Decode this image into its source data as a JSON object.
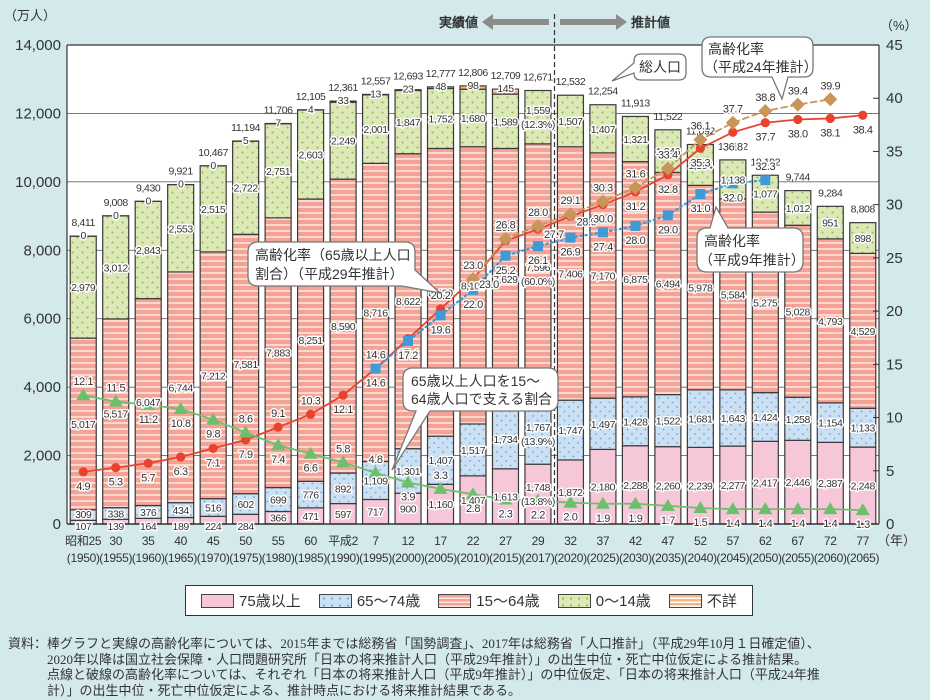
{
  "chart_data": {
    "type": "bar",
    "subtype": "stacked-bar-with-lines",
    "header": {
      "actual_label": "実績値",
      "projection_label": "推計値"
    },
    "left_axis": {
      "unit_label": "（万人）",
      "min": 0,
      "max": 14000,
      "ticks": [
        0,
        2000,
        4000,
        6000,
        8000,
        10000,
        12000,
        14000
      ]
    },
    "right_axis": {
      "unit_label": "（%）",
      "min": 0,
      "max": 45,
      "ticks": [
        0,
        5,
        10,
        15,
        20,
        25,
        30,
        35,
        40,
        45
      ]
    },
    "x_unit_label": "（年）",
    "grid": true,
    "legend_position": "bottom",
    "categories": [
      {
        "era": "昭和25",
        "year": "(1950)"
      },
      {
        "era": "30",
        "year": "(1955)"
      },
      {
        "era": "35",
        "year": "(1960)"
      },
      {
        "era": "40",
        "year": "(1965)"
      },
      {
        "era": "45",
        "year": "(1970)"
      },
      {
        "era": "50",
        "year": "(1975)"
      },
      {
        "era": "55",
        "year": "(1980)"
      },
      {
        "era": "60",
        "year": "(1985)"
      },
      {
        "era": "平成2",
        "year": "(1990)"
      },
      {
        "era": "7",
        "year": "(1995)"
      },
      {
        "era": "12",
        "year": "(2000)"
      },
      {
        "era": "17",
        "year": "(2005)"
      },
      {
        "era": "22",
        "year": "(2010)"
      },
      {
        "era": "27",
        "year": "(2015)"
      },
      {
        "era": "29",
        "year": "(2017)"
      },
      {
        "era": "32",
        "year": "(2020)"
      },
      {
        "era": "37",
        "year": "(2025)"
      },
      {
        "era": "42",
        "year": "(2030)"
      },
      {
        "era": "47",
        "year": "(2035)"
      },
      {
        "era": "52",
        "year": "(2040)"
      },
      {
        "era": "57",
        "year": "(2045)"
      },
      {
        "era": "62",
        "year": "(2050)"
      },
      {
        "era": "67",
        "year": "(2055)"
      },
      {
        "era": "72",
        "year": "(2060)"
      },
      {
        "era": "77",
        "year": "(2065)"
      }
    ],
    "projection_starts_after_index": 14,
    "series": [
      {
        "key": "age75plus",
        "name": "75歳以上",
        "color": "#f6c6d9",
        "pattern": "solid",
        "values": [
          107,
          139,
          164,
          189,
          224,
          284,
          366,
          471,
          597,
          717,
          900,
          1160,
          1407,
          1613,
          1748,
          1872,
          2180,
          2288,
          2260,
          2239,
          2277,
          2417,
          2446,
          2387,
          2248
        ]
      },
      {
        "key": "age65_74",
        "name": "65～74歳",
        "color": "#cbe0f2",
        "pattern": "dots",
        "values": [
          309,
          338,
          376,
          434,
          516,
          602,
          699,
          776,
          892,
          1109,
          1301,
          1407,
          1517,
          1734,
          1767,
          1747,
          1497,
          1428,
          1522,
          1681,
          1643,
          1424,
          1258,
          1154,
          1133
        ]
      },
      {
        "key": "age15_64",
        "name": "15～64歳",
        "color": "#f4a196",
        "pattern": "stripes",
        "values": [
          5017,
          5517,
          6047,
          6744,
          7212,
          7581,
          7883,
          8251,
          8590,
          8716,
          8622,
          8409,
          8103,
          7629,
          7596,
          7406,
          7170,
          6875,
          6494,
          5978,
          5584,
          5275,
          5028,
          4793,
          4529
        ]
      },
      {
        "key": "age0_14",
        "name": "0～14歳",
        "color": "#dde8b7",
        "pattern": "dots",
        "values": [
          2979,
          3012,
          2843,
          2553,
          2515,
          2722,
          2751,
          2603,
          2249,
          2001,
          1847,
          1752,
          1680,
          1589,
          1559,
          1507,
          1407,
          1321,
          1246,
          1194,
          1138,
          1077,
          1012,
          951,
          898
        ]
      },
      {
        "key": "unknown",
        "name": "不詳",
        "color": "#f8b87b",
        "pattern": "stripes",
        "values": [
          0,
          0,
          0,
          0,
          0,
          5,
          7,
          4,
          33,
          13,
          23,
          48,
          98,
          145,
          null,
          null,
          null,
          null,
          null,
          null,
          null,
          null,
          null,
          null,
          null
        ]
      }
    ],
    "totals": [
      8411,
      9008,
      9430,
      9921,
      10467,
      11194,
      11706,
      12105,
      12361,
      12557,
      12693,
      12777,
      12806,
      12709,
      12671,
      12532,
      12254,
      11913,
      11522,
      11092,
      10642,
      10192,
      9744,
      9284,
      8808
    ],
    "annotations": [
      {
        "category_index": 14,
        "series_index": 3,
        "text": "(12.3%)"
      },
      {
        "category_index": 14,
        "series_index": 2,
        "text": "(60.0%)"
      },
      {
        "category_index": 14,
        "series_index": 1,
        "text": "(13.9%)"
      },
      {
        "category_index": 14,
        "series_index": 0,
        "text": "(13.8%)"
      }
    ],
    "lines": [
      {
        "key": "aging-rate-h29",
        "name": "高齢化率（65歳以上人口割合）（平成29年推計）",
        "axis": "right",
        "style": "solid",
        "marker": "circle",
        "color": "#e8432f",
        "start_index": 0,
        "values": [
          4.9,
          5.3,
          5.7,
          6.3,
          7.1,
          7.9,
          9.1,
          10.3,
          12.1,
          14.6,
          17.4,
          20.2,
          23.0,
          26.6,
          27.7,
          28.9,
          30.0,
          31.2,
          32.8,
          35.3,
          36.8,
          37.7,
          38.0,
          38.1,
          38.4
        ]
      },
      {
        "key": "aging-rate-h24",
        "name": "高齢化率（平成24年推計）",
        "axis": "right",
        "style": "dashed",
        "marker": "diamond",
        "color": "#c8955a",
        "start_index": 12,
        "values": [
          23.0,
          26.8,
          28.0,
          29.1,
          30.3,
          31.6,
          33.4,
          36.1,
          37.7,
          38.8,
          39.4,
          39.9
        ]
      },
      {
        "key": "aging-rate-h9",
        "name": "高齢化率（平成9年推計）",
        "axis": "right",
        "style": "dotted",
        "marker": "square",
        "color": "#3f9ad6",
        "start_index": 9,
        "values": [
          14.6,
          17.2,
          19.6,
          22.0,
          25.2,
          26.1,
          26.9,
          27.4,
          28.0,
          29.0,
          31.0,
          32.0,
          32.3
        ]
      },
      {
        "key": "support-ratio",
        "name": "65歳以上人口を15～64歳人口で支える割合",
        "axis": "right",
        "style": "solid",
        "marker": "triangle",
        "color": "#6cbf6b",
        "start_index": 0,
        "values": [
          12.1,
          11.5,
          11.2,
          10.8,
          9.8,
          8.6,
          7.4,
          6.6,
          5.8,
          4.8,
          3.9,
          3.3,
          2.8,
          2.3,
          2.2,
          2.0,
          1.9,
          1.9,
          1.7,
          1.5,
          1.4,
          1.4,
          1.4,
          1.4,
          1.3
        ]
      }
    ],
    "callouts": {
      "total_population": {
        "lines": [
          "総人口"
        ]
      },
      "aging_h24": {
        "lines": [
          "高齢化率",
          "（平成24年推計）"
        ]
      },
      "aging_h29": {
        "lines": [
          "高齢化率（65歳以上人口",
          "割合）（平成29年推計）"
        ]
      },
      "support_ratio": {
        "lines": [
          "65歳以上人口を15～",
          "64歳人口で支える割合"
        ]
      },
      "aging_h9": {
        "lines": [
          "高齢化率",
          "（平成9年推計）"
        ]
      }
    }
  },
  "source_note": {
    "prefix": "資料：",
    "lines": [
      "棒グラフと実線の高齢化率については、2015年までは総務省「国勢調査」、2017年は総務省「人口推計」（平成29年10月１日確定値）、",
      "2020年以降は国立社会保障・人口問題研究所「日本の将来推計人口（平成29年推計）」の出生中位・死亡中位仮定による推計結果。",
      "点線と破線の高齢化率については、それぞれ「日本の将来推計人口（平成9年推計）」の中位仮定、「日本の将来推計人口（平成24年推",
      "計）」の出生中位・死亡中位仮定による、推計時点における将来推計結果である。"
    ]
  }
}
